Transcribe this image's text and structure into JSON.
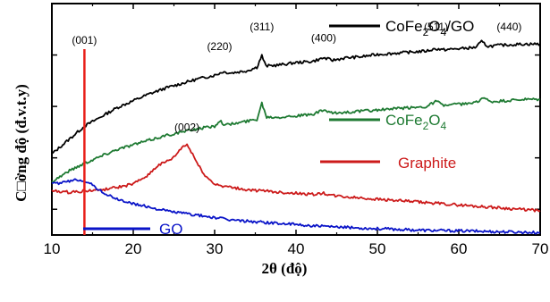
{
  "chart_data": {
    "type": "line",
    "xlabel": "2θ (độ)",
    "ylabel": "C□ờng độ (đ.v.t.y)",
    "xlim": [
      10,
      70
    ],
    "ylim": [
      0,
      1
    ],
    "x_ticks": [
      10,
      20,
      30,
      40,
      50,
      60,
      70
    ],
    "y_tick_labels_shown": false,
    "grid": false,
    "legend": "inline",
    "series": [
      {
        "name": "CoFe2O4/GO",
        "label_main": "CoFe",
        "label_sub": "2",
        "label_mid": "O",
        "label_sub2": "4",
        "label_tail": "/GO",
        "color": "#000000",
        "points": [
          [
            10,
            0.35
          ],
          [
            12,
            0.41
          ],
          [
            14,
            0.47
          ],
          [
            16,
            0.51
          ],
          [
            18,
            0.55
          ],
          [
            20,
            0.58
          ],
          [
            22,
            0.61
          ],
          [
            24,
            0.635
          ],
          [
            26,
            0.655
          ],
          [
            28,
            0.675
          ],
          [
            30,
            0.69
          ],
          [
            31,
            0.705
          ],
          [
            32,
            0.7
          ],
          [
            34,
            0.71
          ],
          [
            35.2,
            0.725
          ],
          [
            35.8,
            0.775
          ],
          [
            36.3,
            0.73
          ],
          [
            38,
            0.735
          ],
          [
            40,
            0.745
          ],
          [
            42,
            0.75
          ],
          [
            43.4,
            0.765
          ],
          [
            44.5,
            0.755
          ],
          [
            46,
            0.765
          ],
          [
            48,
            0.77
          ],
          [
            50,
            0.78
          ],
          [
            52,
            0.785
          ],
          [
            54,
            0.79
          ],
          [
            56,
            0.795
          ],
          [
            57.2,
            0.805
          ],
          [
            58,
            0.8
          ],
          [
            60,
            0.805
          ],
          [
            62,
            0.81
          ],
          [
            62.8,
            0.835
          ],
          [
            63.6,
            0.815
          ],
          [
            65,
            0.82
          ],
          [
            68,
            0.825
          ],
          [
            70,
            0.825
          ]
        ]
      },
      {
        "name": "CoFe2O4",
        "label_main": "CoFe",
        "label_sub": "2",
        "label_mid": "O",
        "label_sub2": "4",
        "label_tail": "",
        "color": "#1e7a32",
        "points": [
          [
            10,
            0.23
          ],
          [
            12,
            0.275
          ],
          [
            14,
            0.31
          ],
          [
            16,
            0.34
          ],
          [
            18,
            0.37
          ],
          [
            20,
            0.39
          ],
          [
            22,
            0.41
          ],
          [
            24,
            0.43
          ],
          [
            26,
            0.445
          ],
          [
            28,
            0.46
          ],
          [
            30,
            0.47
          ],
          [
            30.6,
            0.495
          ],
          [
            31.3,
            0.475
          ],
          [
            33,
            0.485
          ],
          [
            35.2,
            0.5
          ],
          [
            35.8,
            0.57
          ],
          [
            36.4,
            0.51
          ],
          [
            38,
            0.51
          ],
          [
            40,
            0.515
          ],
          [
            42,
            0.52
          ],
          [
            43.4,
            0.54
          ],
          [
            44.5,
            0.525
          ],
          [
            46,
            0.53
          ],
          [
            48,
            0.535
          ],
          [
            50,
            0.54
          ],
          [
            52,
            0.545
          ],
          [
            54,
            0.55
          ],
          [
            56,
            0.555
          ],
          [
            57.3,
            0.58
          ],
          [
            58,
            0.56
          ],
          [
            60,
            0.565
          ],
          [
            62,
            0.57
          ],
          [
            63,
            0.595
          ],
          [
            63.8,
            0.575
          ],
          [
            66,
            0.58
          ],
          [
            68,
            0.585
          ],
          [
            70,
            0.585
          ]
        ]
      },
      {
        "name": "Graphite",
        "label_main": "Graphite",
        "label_sub": "",
        "label_mid": "",
        "label_sub2": "",
        "label_tail": "",
        "color": "#cc1a1a",
        "points": [
          [
            10,
            0.19
          ],
          [
            12,
            0.185
          ],
          [
            14,
            0.19
          ],
          [
            16,
            0.195
          ],
          [
            18,
            0.205
          ],
          [
            20,
            0.22
          ],
          [
            21,
            0.24
          ],
          [
            22,
            0.265
          ],
          [
            23,
            0.3
          ],
          [
            24,
            0.315
          ],
          [
            25,
            0.335
          ],
          [
            26,
            0.38
          ],
          [
            26.6,
            0.39
          ],
          [
            27.3,
            0.35
          ],
          [
            28,
            0.3
          ],
          [
            29,
            0.25
          ],
          [
            30,
            0.22
          ],
          [
            32,
            0.205
          ],
          [
            34,
            0.195
          ],
          [
            36,
            0.19
          ],
          [
            38,
            0.185
          ],
          [
            40,
            0.18
          ],
          [
            42,
            0.175
          ],
          [
            43.4,
            0.18
          ],
          [
            44.5,
            0.17
          ],
          [
            46,
            0.165
          ],
          [
            48,
            0.16
          ],
          [
            50,
            0.155
          ],
          [
            52,
            0.15
          ],
          [
            54,
            0.145
          ],
          [
            56,
            0.14
          ],
          [
            58,
            0.135
          ],
          [
            60,
            0.13
          ],
          [
            62,
            0.125
          ],
          [
            64,
            0.12
          ],
          [
            66,
            0.115
          ],
          [
            68,
            0.11
          ],
          [
            70,
            0.105
          ]
        ]
      },
      {
        "name": "GO",
        "label_main": "GO",
        "label_sub": "",
        "label_mid": "",
        "label_sub2": "",
        "label_tail": "",
        "color": "#0a14c8",
        "points": [
          [
            10,
            0.22
          ],
          [
            11,
            0.225
          ],
          [
            12,
            0.23
          ],
          [
            13,
            0.24
          ],
          [
            14,
            0.235
          ],
          [
            15,
            0.215
          ],
          [
            16,
            0.19
          ],
          [
            17,
            0.17
          ],
          [
            18,
            0.155
          ],
          [
            20,
            0.135
          ],
          [
            22,
            0.12
          ],
          [
            24,
            0.105
          ],
          [
            26,
            0.095
          ],
          [
            28,
            0.085
          ],
          [
            30,
            0.075
          ],
          [
            32,
            0.065
          ],
          [
            34,
            0.06
          ],
          [
            36,
            0.055
          ],
          [
            38,
            0.05
          ],
          [
            40,
            0.045
          ],
          [
            44,
            0.035
          ],
          [
            48,
            0.03
          ],
          [
            52,
            0.025
          ],
          [
            56,
            0.02
          ],
          [
            60,
            0.018
          ],
          [
            64,
            0.015
          ],
          [
            68,
            0.012
          ],
          [
            70,
            0.01
          ]
        ]
      }
    ],
    "reference_line": {
      "x": 14,
      "label": "(001)",
      "color": "#e8201a"
    },
    "annotations": [
      {
        "label": "(002)",
        "x": 26.6,
        "y": 0.45
      },
      {
        "label": "(220)",
        "x": 30.6,
        "y": 0.8
      },
      {
        "label": "(311)",
        "x": 35.8,
        "y": 0.885
      },
      {
        "label": "(400)",
        "x": 43.4,
        "y": 0.835
      },
      {
        "label": "(511)",
        "x": 57.2,
        "y": 0.885
      },
      {
        "label": "(440)",
        "x": 66.2,
        "y": 0.885
      }
    ]
  }
}
